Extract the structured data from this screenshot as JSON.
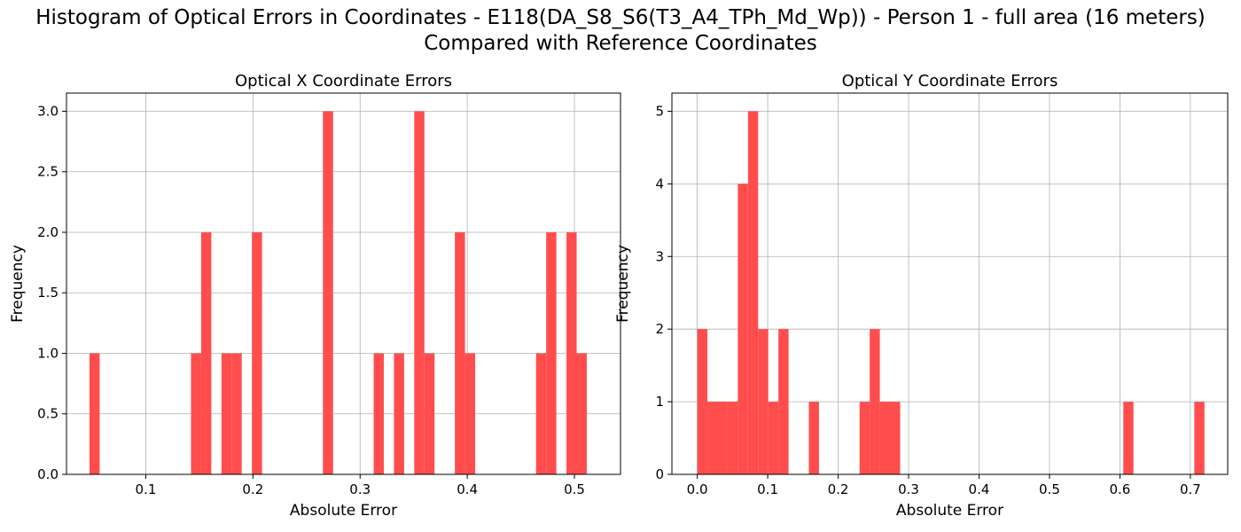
{
  "figure": {
    "title_line1": "Histogram of Optical Errors in Coordinates - E118(DA_S8_S6(T3_A4_TPh_Md_Wp)) - Person 1 - full area (16 meters)",
    "title_line2": "Compared with Reference Coordinates",
    "bar_color": "#ff4d4d",
    "grid_color": "#b0b0b0"
  },
  "chart_data": [
    {
      "type": "bar",
      "title": "Optical X Coordinate Errors",
      "xlabel": "Absolute Error",
      "ylabel": "Frequency",
      "xlim": [
        0.026,
        0.543
      ],
      "ylim": [
        0,
        3.15
      ],
      "xticks": [
        0.1,
        0.2,
        0.3,
        0.4,
        0.5
      ],
      "xtick_labels": [
        "0.1",
        "0.2",
        "0.3",
        "0.4",
        "0.5"
      ],
      "yticks": [
        0.0,
        0.5,
        1.0,
        1.5,
        2.0,
        2.5,
        3.0
      ],
      "ytick_labels": [
        "0.0",
        "0.5",
        "1.0",
        "1.5",
        "2.0",
        "2.5",
        "3.0"
      ],
      "grid": true,
      "bins": {
        "start": 0.0475,
        "width": 0.00947
      },
      "counts": [
        1,
        0,
        0,
        0,
        0,
        0,
        0,
        0,
        0,
        0,
        1,
        2,
        0,
        1,
        1,
        0,
        2,
        0,
        0,
        0,
        0,
        0,
        0,
        3,
        0,
        0,
        0,
        0,
        1,
        0,
        1,
        0,
        3,
        1,
        0,
        0,
        2,
        1,
        0,
        0,
        0,
        0,
        0,
        0,
        1,
        2,
        0,
        2,
        1,
        0
      ]
    },
    {
      "type": "bar",
      "title": "Optical Y Coordinate Errors",
      "xlabel": "Absolute Error",
      "ylabel": "Frequency",
      "xlim": [
        -0.036,
        0.753
      ],
      "ylim": [
        0,
        5.25
      ],
      "xticks": [
        0.0,
        0.1,
        0.2,
        0.3,
        0.4,
        0.5,
        0.6,
        0.7
      ],
      "xtick_labels": [
        "0.0",
        "0.1",
        "0.2",
        "0.3",
        "0.4",
        "0.5",
        "0.6",
        "0.7"
      ],
      "yticks": [
        0,
        1,
        2,
        3,
        4,
        5
      ],
      "ytick_labels": [
        "0",
        "1",
        "2",
        "3",
        "4",
        "5"
      ],
      "grid": true,
      "bins": {
        "start": 0.0,
        "width": 0.0144
      },
      "counts": [
        2,
        1,
        1,
        1,
        4,
        5,
        2,
        1,
        2,
        0,
        0,
        1,
        0,
        0,
        0,
        0,
        1,
        2,
        1,
        1,
        0,
        0,
        0,
        0,
        0,
        0,
        0,
        0,
        0,
        0,
        0,
        0,
        0,
        0,
        0,
        0,
        0,
        0,
        0,
        0,
        0,
        0,
        1,
        0,
        0,
        0,
        0,
        0,
        0,
        1
      ]
    }
  ]
}
